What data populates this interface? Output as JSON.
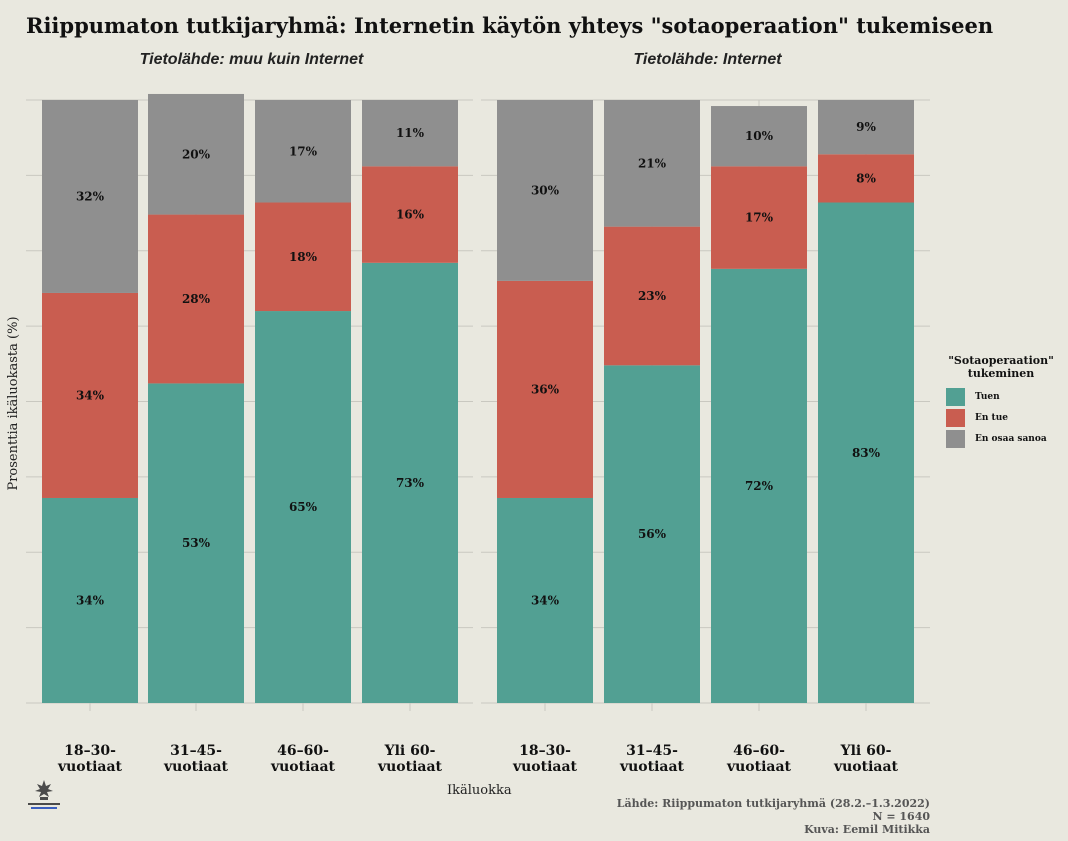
{
  "title": "Riippumaton tutkijaryhmä: Internetin käytön yhteys \"sotaoperaation\" tukemiseen",
  "chart_data": {
    "type": "bar",
    "stacked": true,
    "ylabel": "Prosenttia ikäluokasta (%)",
    "xlabel": "Ikäluokka",
    "ylim": [
      0,
      100
    ],
    "grid": true,
    "legend_position": "right",
    "categories": [
      "18–30-\nvuotiaat",
      "31–45-\nvuotiaat",
      "46–60-\nvuotiaat",
      "Yli 60-\nvuotiaat"
    ],
    "panels": [
      {
        "title": "Tietolähde: muu kuin Internet",
        "series": [
          {
            "name": "Tuen",
            "values": [
              34,
              53,
              65,
              73
            ],
            "labels": [
              "34%",
              "53%",
              "65%",
              "73%"
            ]
          },
          {
            "name": "En tue",
            "values": [
              34,
              28,
              18,
              16
            ],
            "labels": [
              "34%",
              "28%",
              "18%",
              "16%"
            ]
          },
          {
            "name": "En osaa sanoa",
            "values": [
              32,
              20,
              17,
              11
            ],
            "labels": [
              "32%",
              "20%",
              "17%",
              "11%"
            ]
          }
        ]
      },
      {
        "title": "Tietolähde: Internet",
        "series": [
          {
            "name": "Tuen",
            "values": [
              34,
              56,
              72,
              83
            ],
            "labels": [
              "34%",
              "56%",
              "72%",
              "83%"
            ]
          },
          {
            "name": "En tue",
            "values": [
              36,
              23,
              17,
              8
            ],
            "labels": [
              "36%",
              "23%",
              "17%",
              "8%"
            ]
          },
          {
            "name": "En osaa sanoa",
            "values": [
              30,
              21,
              10,
              9
            ],
            "labels": [
              "30%",
              "21%",
              "10%",
              "9%"
            ]
          }
        ]
      }
    ],
    "colors": {
      "Tuen": "#52a093",
      "En tue": "#c95d50",
      "En osaa sanoa": "#8f8f8f"
    }
  },
  "legend": {
    "title_line1": "\"Sotaoperaation\"",
    "title_line2": "tukeminen",
    "items": [
      "Tuen",
      "En tue",
      "En osaa sanoa"
    ]
  },
  "source": {
    "line1": "Lähde: Riippumaton tutkijaryhmä (28.2.–1.3.2022)",
    "line2": "N = 1640",
    "line3": "Kuva: Eemil Mitikka"
  }
}
